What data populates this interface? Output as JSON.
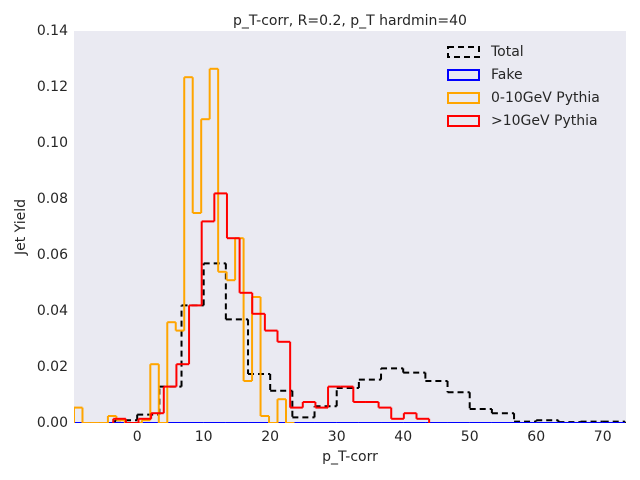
{
  "chart_data": {
    "type": "histogram",
    "title": "p_T-corr, R=0.2, p_T hardmin=40",
    "xlabel": "p_T-corr",
    "ylabel": "Jet Yield",
    "xlim": [
      -9.5,
      73.5
    ],
    "ylim": [
      0,
      0.14
    ],
    "xticks": [
      0,
      10,
      20,
      30,
      40,
      50,
      60,
      70
    ],
    "yticks": [
      {
        "value": 0,
        "label": "0.00"
      },
      0.02,
      0.04,
      0.06,
      0.08,
      {
        "value": 0.1,
        "label": "0.10"
      },
      0.12,
      0.14
    ],
    "grid": false,
    "legend": "upper right",
    "series": [
      {
        "name": "Total",
        "color": "#000000",
        "linestyle": "dashed",
        "bins": [
          -10,
          -6.667,
          -3.333,
          0,
          3.333,
          6.667,
          10,
          13.333,
          16.667,
          20,
          23.333,
          26.667,
          30,
          33.333,
          36.667,
          40,
          43.333,
          46.667,
          50,
          53.333,
          56.667,
          60,
          63.333,
          66.667,
          70,
          73.333
        ],
        "values": [
          0,
          0,
          0.001,
          0.003,
          0.013,
          0.042,
          0.057,
          0.037,
          0.0175,
          0.0115,
          0.002,
          0.006,
          0.0125,
          0.0155,
          0.0195,
          0.018,
          0.015,
          0.011,
          0.005,
          0.0035,
          0.0005,
          0.001,
          0.0003,
          0.0005,
          0.0005
        ]
      },
      {
        "name": "Fake",
        "color": "#0000ff",
        "linestyle": "solid",
        "bins": [
          -10,
          -6.667,
          -3.333,
          0,
          3.333,
          6.667,
          10,
          13.333,
          16.667,
          20,
          23.333,
          26.667,
          30,
          33.333,
          36.667,
          40,
          43.333,
          46.667,
          50,
          53.333,
          56.667,
          60,
          63.333,
          66.667,
          70,
          73.333
        ],
        "values": [
          0,
          0,
          0,
          0,
          0,
          0,
          0,
          0,
          0,
          0,
          0,
          0,
          0,
          0,
          0,
          0,
          0,
          0,
          0,
          0,
          0,
          0,
          0,
          0,
          0
        ]
      },
      {
        "name": "0-10GeV Pythia",
        "color": "#ffa500",
        "linestyle": "solid",
        "bins": [
          -9.5,
          -8.225,
          -6.95,
          -5.675,
          -4.4,
          -3.125,
          -1.85,
          -0.575,
          0.7,
          1.975,
          3.25,
          4.525,
          5.8,
          7.075,
          8.35,
          9.625,
          10.9,
          12.175,
          13.45,
          14.725,
          16,
          17.275,
          18.55,
          19.825,
          21.1,
          22.375,
          23.65
        ],
        "values": [
          0.0055,
          0,
          0,
          0,
          0.0025,
          0.001,
          0,
          0,
          0.001,
          0.021,
          0,
          0.036,
          0.033,
          0.1235,
          0.075,
          0.1085,
          0.1265,
          0.054,
          0.051,
          0.066,
          0.015,
          0.045,
          0.0025,
          0,
          0.0085,
          0
        ]
      },
      {
        "name": ">10GeV Pythia",
        "color": "#ff0000",
        "linestyle": "solid",
        "bins": [
          -3.6,
          -1.7,
          0.2,
          2.1,
          4.0,
          5.9,
          7.8,
          9.7,
          11.6,
          13.5,
          15.4,
          17.3,
          19.2,
          21.1,
          23.0,
          24.9,
          26.8,
          28.7,
          30.6,
          32.5,
          34.4,
          36.3,
          38.2,
          40.1,
          42.0,
          43.9
        ],
        "values": [
          0.0015,
          0,
          0.0015,
          0.0035,
          0.013,
          0.021,
          0.042,
          0.072,
          0.082,
          0.066,
          0.0465,
          0.039,
          0.033,
          0.029,
          0.0055,
          0.0075,
          0.0055,
          0.013,
          0.013,
          0.0075,
          0.0075,
          0.0055,
          0.0015,
          0.0035,
          0.0015
        ]
      }
    ]
  }
}
